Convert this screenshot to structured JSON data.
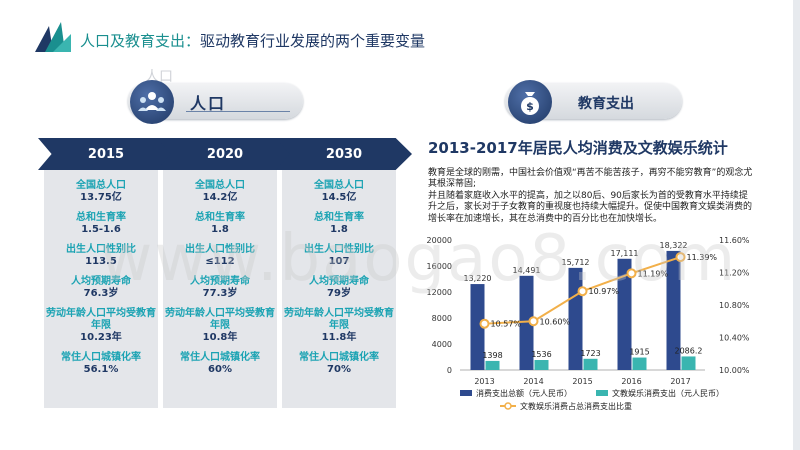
{
  "header": {
    "title_main": "人口及教育支出：",
    "title_sub": "驱动教育行业发展的两个重要变量"
  },
  "left": {
    "pill_label": "人口",
    "ghost_label": "人口",
    "columns": [
      {
        "year": "2015",
        "items": [
          {
            "label": "全国总人口",
            "value": "13.75亿"
          },
          {
            "label": "总和生育率",
            "value": "1.5-1.6"
          },
          {
            "label": "出生人口性别比",
            "value": "113.5"
          },
          {
            "label": "人均预期寿命",
            "value": "76.3岁"
          },
          {
            "label": "劳动年龄人口平均受教育年限",
            "value": "10.23年"
          },
          {
            "label": "常住人口城镇化率",
            "value": "56.1%"
          }
        ]
      },
      {
        "year": "2020",
        "items": [
          {
            "label": "全国总人口",
            "value": "14.2亿"
          },
          {
            "label": "总和生育率",
            "value": "1.8"
          },
          {
            "label": "出生人口性别比",
            "value": "≤112"
          },
          {
            "label": "人均预期寿命",
            "value": "77.3岁"
          },
          {
            "label": "劳动年龄人口平均受教育年限",
            "value": "10.8年"
          },
          {
            "label": "常住人口城镇化率",
            "value": "60%"
          }
        ]
      },
      {
        "year": "2030",
        "items": [
          {
            "label": "全国总人口",
            "value": "14.5亿"
          },
          {
            "label": "总和生育率",
            "value": "1.8"
          },
          {
            "label": "出生人口性别比",
            "value": "107"
          },
          {
            "label": "人均预期寿命",
            "value": "79岁"
          },
          {
            "label": "劳动年龄人口平均受教育年限",
            "value": "11.8年"
          },
          {
            "label": "常住人口城镇化率",
            "value": "70%"
          }
        ]
      }
    ]
  },
  "right": {
    "pill_label": "教育支出",
    "chart_title": "2013-2017年居民人均消费及文教娱乐统计",
    "description": "教育是全球的刚需，中国社会价值观“再苦不能苦孩子，再穷不能穷教育”的观念尤其根深蒂固;\n并且随着家庭收入水平的提高，加之以80后、90后家长为首的受教育水平持续提升之后，家长对于子女教育的重视度也持续大幅提升。促使中国教育文娱类消费的增长率在加速增长，其在总消费中的百分比也在加快增长。"
  },
  "watermark": "www.baogao8.com",
  "chart_data": {
    "type": "bar",
    "categories": [
      "2013",
      "2014",
      "2015",
      "2016",
      "2017"
    ],
    "series": [
      {
        "name": "消费支出总额（元人民币）",
        "values": [
          13220,
          14491,
          15712,
          17111,
          18322
        ],
        "labels": [
          "13,220",
          "14,491",
          "15,712",
          "17,111",
          "18,322"
        ],
        "color": "#2e4a8e",
        "axis": "left"
      },
      {
        "name": "文教娱乐消费支出（元人民币）",
        "values": [
          1398,
          1536,
          1723,
          1915,
          2086.2
        ],
        "labels": [
          "1398",
          "1536",
          "1723",
          "1915",
          "2086.2"
        ],
        "color": "#3ab5b0",
        "axis": "left"
      },
      {
        "name": "文教娱乐消费占总消费支出比重",
        "type": "line",
        "values": [
          10.57,
          10.6,
          10.97,
          11.19,
          11.39
        ],
        "labels": [
          "10.57%",
          "10.60%",
          "10.97%",
          "11.19%",
          "11.39%"
        ],
        "color": "#f2b04a",
        "axis": "right"
      }
    ],
    "y_left": {
      "min": 0,
      "max": 20000,
      "ticks": [
        "0",
        "4000",
        "8000",
        "12000",
        "16000",
        "20000"
      ]
    },
    "y_right": {
      "min": 10.0,
      "max": 11.6,
      "ticks": [
        "10.00%",
        "10.40%",
        "10.80%",
        "11.20%",
        "11.60%"
      ]
    }
  }
}
